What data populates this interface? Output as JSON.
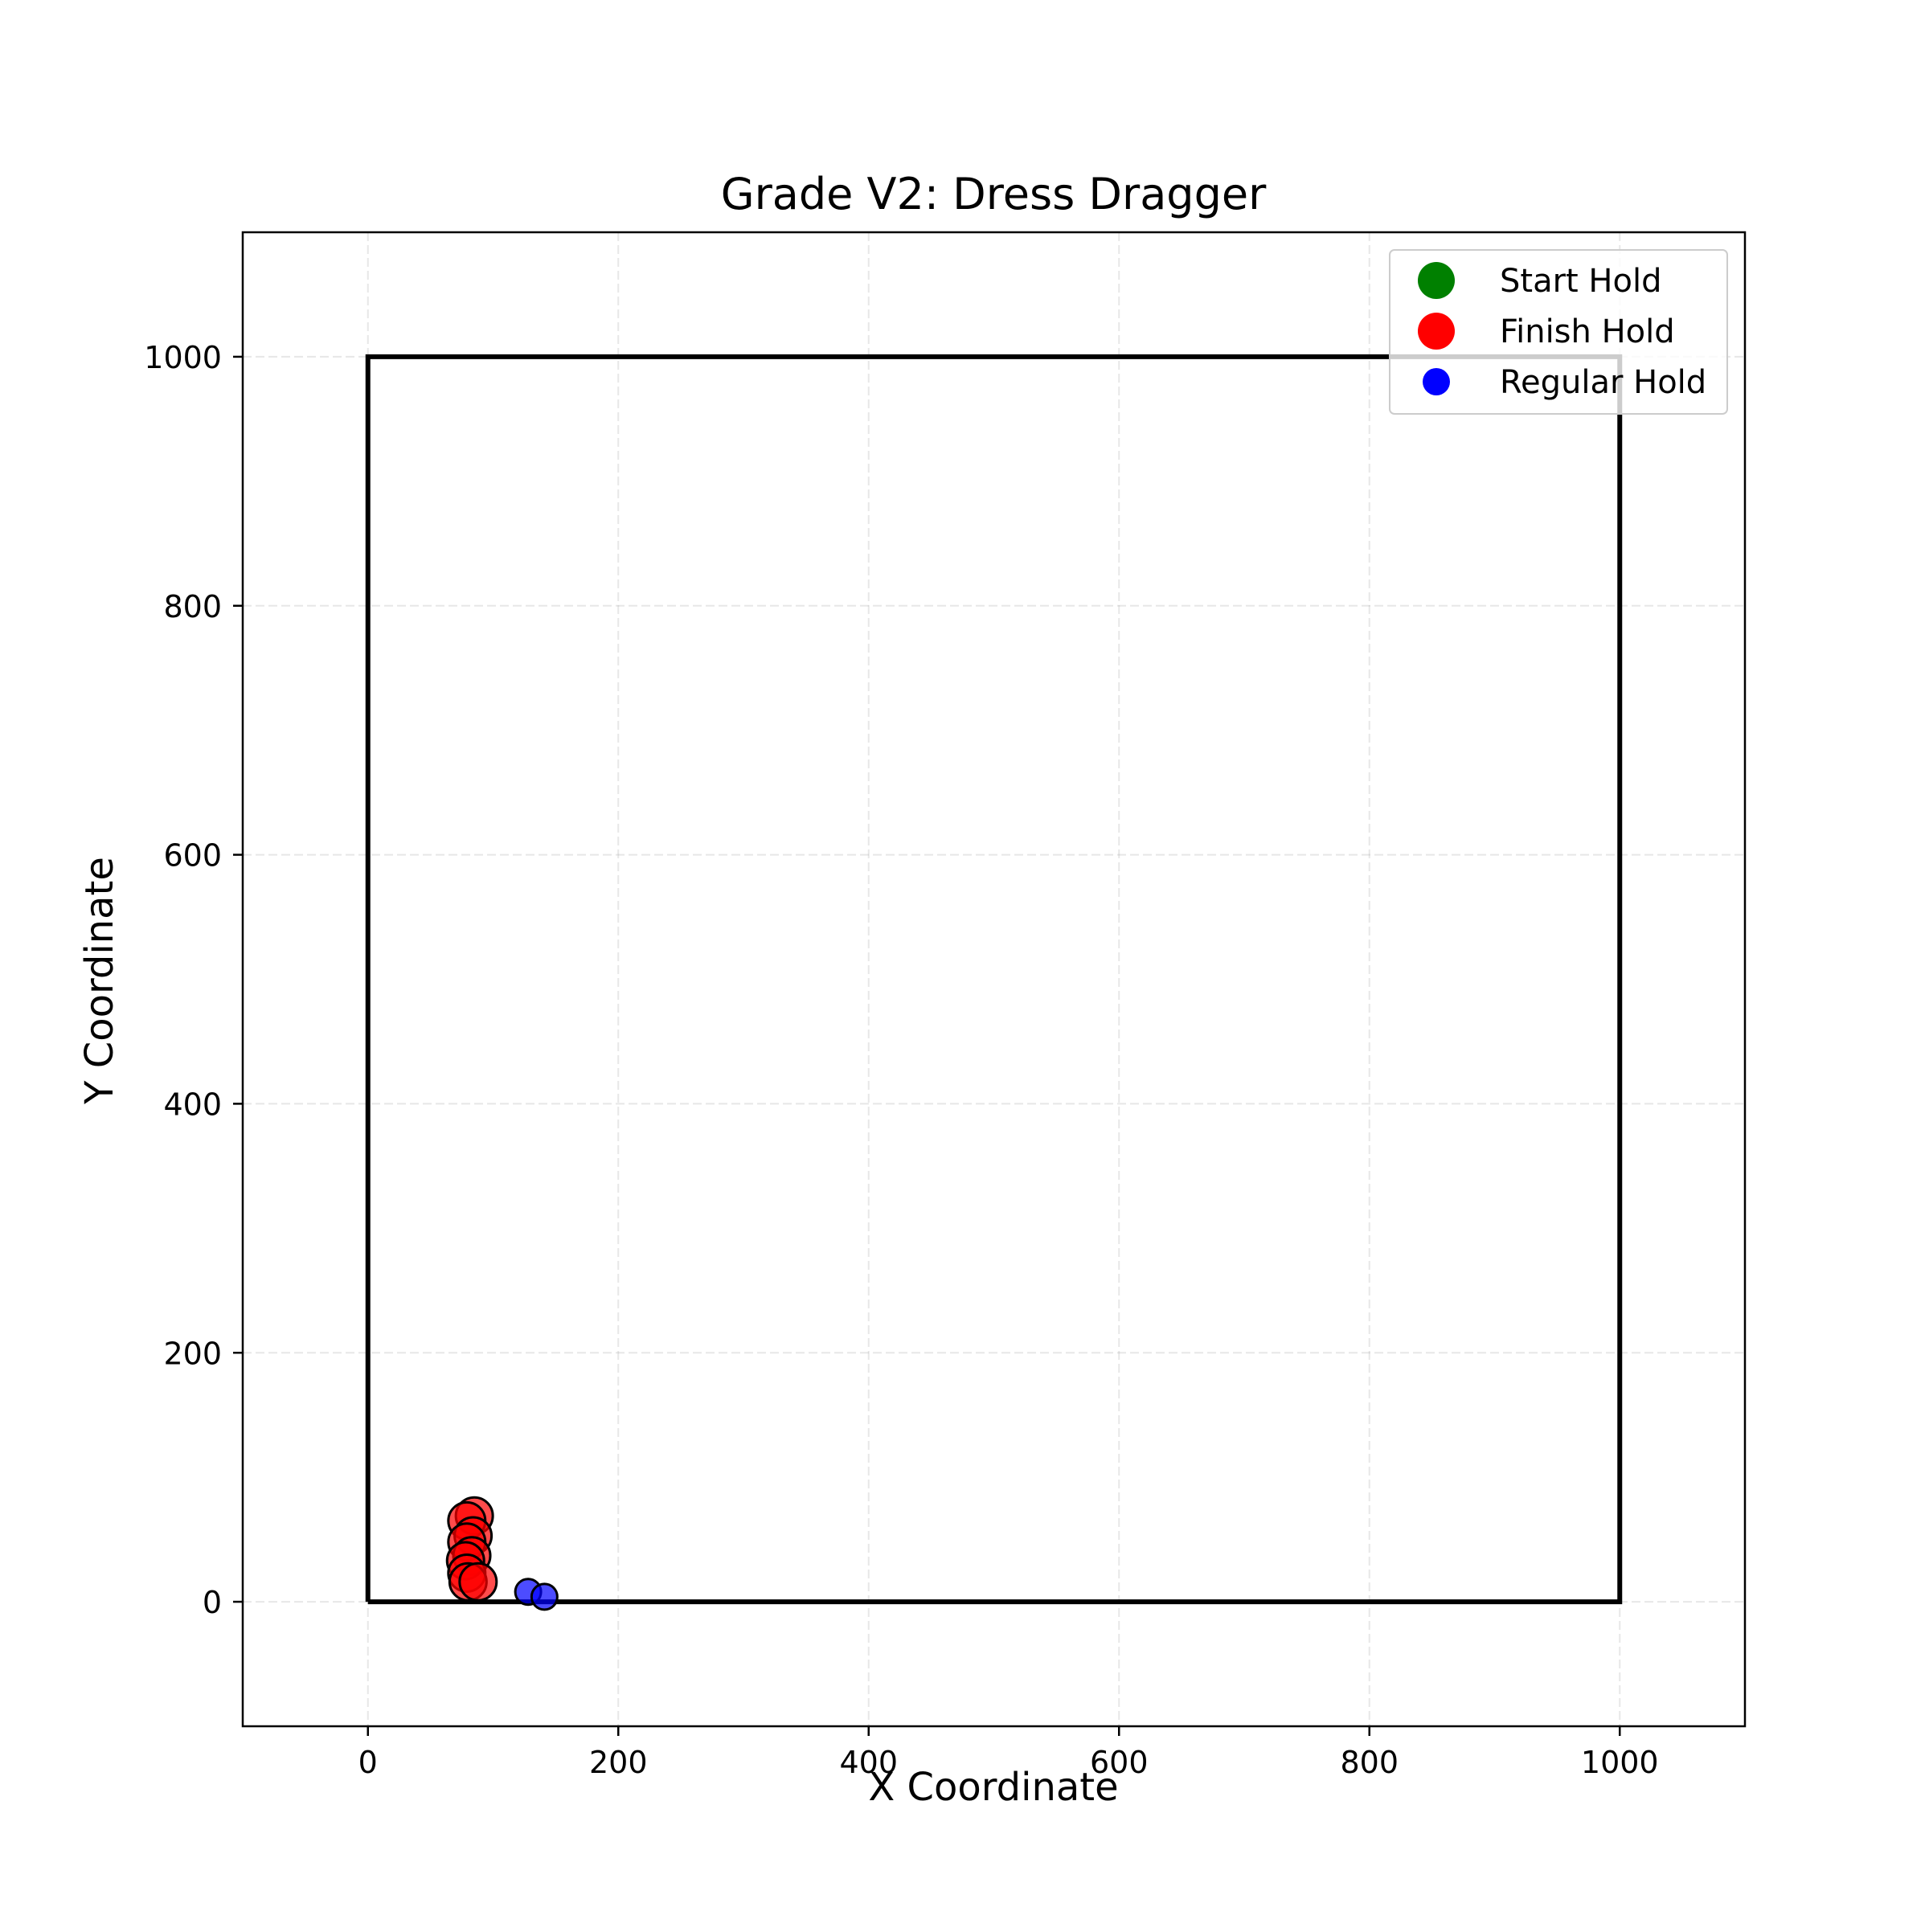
{
  "chart_data": {
    "type": "scatter",
    "title": "Grade V2: Dress Dragger",
    "xlabel": "X Coordinate",
    "ylabel": "Y Coordinate",
    "xlim": [
      -100,
      1100
    ],
    "ylim": [
      -100,
      1100
    ],
    "xticks": [
      0,
      200,
      400,
      600,
      800,
      1000
    ],
    "yticks": [
      0,
      200,
      400,
      600,
      800,
      1000
    ],
    "xtick_labels": [
      "0",
      "200",
      "400",
      "600",
      "800",
      "1000"
    ],
    "ytick_labels": [
      "0",
      "200",
      "400",
      "600",
      "800",
      "1000"
    ],
    "grid": true,
    "legend_position": "top-right",
    "board": {
      "label": "",
      "x": [
        0,
        1000,
        1000,
        0,
        0
      ],
      "y": [
        0,
        0,
        1000,
        1000,
        0
      ],
      "color": "#000000"
    },
    "series": [
      {
        "name": "Start Hold",
        "color": "#008000",
        "points": []
      },
      {
        "name": "Finish Hold",
        "color": "#ff0000",
        "points": [
          {
            "x": 85,
            "y": 69
          },
          {
            "x": 79,
            "y": 65
          },
          {
            "x": 84,
            "y": 53
          },
          {
            "x": 79,
            "y": 48
          },
          {
            "x": 83,
            "y": 37
          },
          {
            "x": 78,
            "y": 33
          },
          {
            "x": 79,
            "y": 23
          },
          {
            "x": 80,
            "y": 16
          },
          {
            "x": 88,
            "y": 16
          }
        ]
      },
      {
        "name": "Regular Hold",
        "color": "#0000ff",
        "points": [
          {
            "x": 128,
            "y": 8
          },
          {
            "x": 141,
            "y": 4
          }
        ]
      }
    ]
  }
}
